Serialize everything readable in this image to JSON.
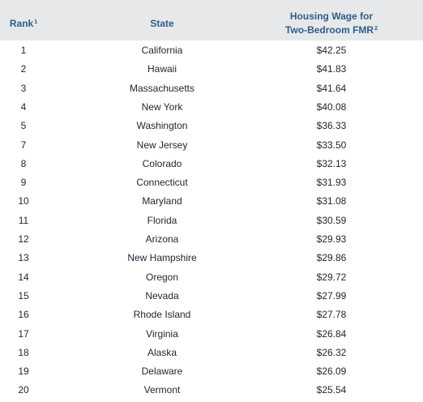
{
  "header": {
    "rank_label": "Rank",
    "rank_note": "1",
    "state_label": "State",
    "wage_label_line1": "Housing Wage for",
    "wage_label_line2": "Two-Bedroom FMR",
    "wage_note": "2"
  },
  "rows": [
    {
      "rank": "1",
      "state": "California",
      "wage": "$42.25"
    },
    {
      "rank": "2",
      "state": "Hawaii",
      "wage": "$41.83"
    },
    {
      "rank": "3",
      "state": "Massachusetts",
      "wage": "$41.64"
    },
    {
      "rank": "4",
      "state": "New York",
      "wage": "$40.08"
    },
    {
      "rank": "5",
      "state": "Washington",
      "wage": "$36.33"
    },
    {
      "rank": "7",
      "state": "New Jersey",
      "wage": "$33.50"
    },
    {
      "rank": "8",
      "state": "Colorado",
      "wage": "$32.13"
    },
    {
      "rank": "9",
      "state": "Connecticut",
      "wage": "$31.93"
    },
    {
      "rank": "10",
      "state": "Maryland",
      "wage": "$31.08"
    },
    {
      "rank": "11",
      "state": "Florida",
      "wage": "$30.59"
    },
    {
      "rank": "12",
      "state": "Arizona",
      "wage": "$29.93"
    },
    {
      "rank": "13",
      "state": "New Hampshire",
      "wage": "$29.86"
    },
    {
      "rank": "14",
      "state": "Oregon",
      "wage": "$29.72"
    },
    {
      "rank": "15",
      "state": "Nevada",
      "wage": "$27.99"
    },
    {
      "rank": "16",
      "state": "Rhode Island",
      "wage": "$27.78"
    },
    {
      "rank": "17",
      "state": "Virginia",
      "wage": "$26.84"
    },
    {
      "rank": "18",
      "state": "Alaska",
      "wage": "$26.32"
    },
    {
      "rank": "19",
      "state": "Delaware",
      "wage": "$26.09"
    },
    {
      "rank": "20",
      "state": "Vermont",
      "wage": "$25.54"
    }
  ]
}
